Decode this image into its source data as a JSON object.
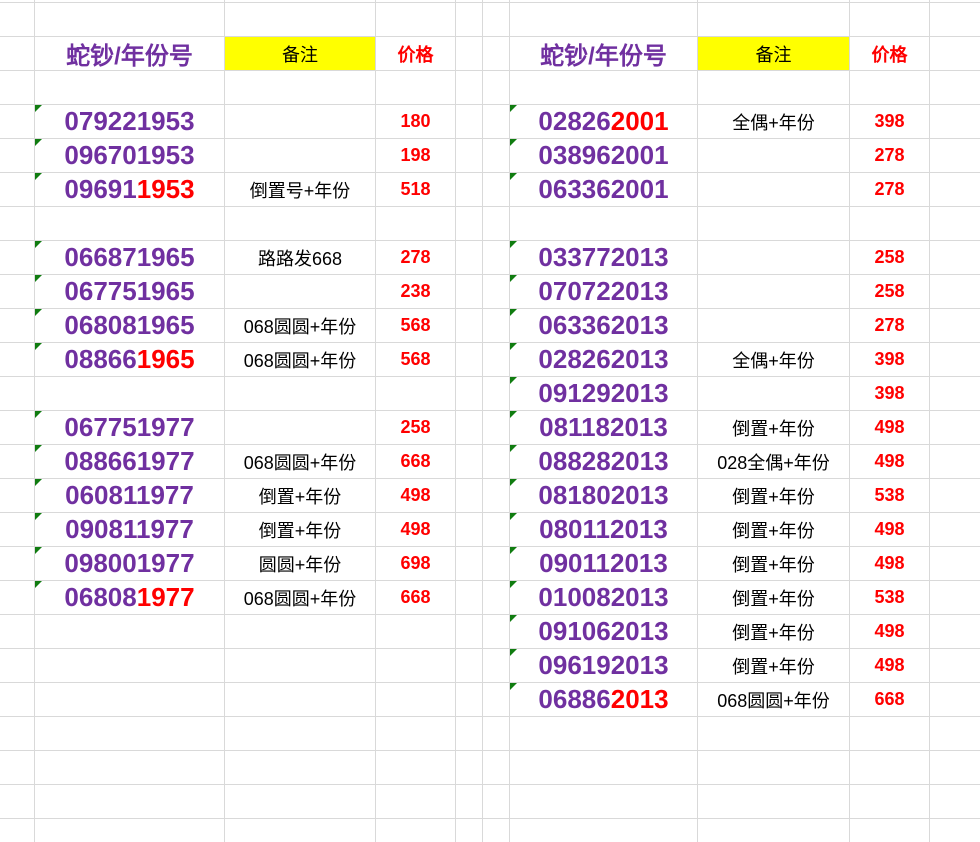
{
  "colors": {
    "number": "#7030a0",
    "highlight": "#ff0000",
    "price": "#ff0000",
    "note_header_fill": "#ffff00",
    "comment_marker": "#107c10"
  },
  "left_table": {
    "header": {
      "number": "蛇钞/年份号",
      "note": "备注",
      "price": "价格"
    },
    "groups": [
      [
        {
          "number": "079221953",
          "highlight": "",
          "note": "",
          "price": "180"
        },
        {
          "number": "096701953",
          "highlight": "",
          "note": "",
          "price": "198"
        },
        {
          "number": "09691",
          "highlight": "1953",
          "note": "倒置号+年份",
          "price": "518"
        }
      ],
      [
        {
          "number": "066871965",
          "highlight": "",
          "note": "路路发668",
          "price": "278"
        },
        {
          "number": "067751965",
          "highlight": "",
          "note": "",
          "price": "238"
        },
        {
          "number": "068081965",
          "highlight": "",
          "note": "068圆圆+年份",
          "price": "568"
        },
        {
          "number": "08866",
          "highlight": "1965",
          "note": "068圆圆+年份",
          "price": "568"
        }
      ],
      [
        {
          "number": "067751977",
          "highlight": "",
          "note": "",
          "price": "258"
        },
        {
          "number": "088661977",
          "highlight": "",
          "note": "068圆圆+年份",
          "price": "668"
        },
        {
          "number": "060811977",
          "highlight": "",
          "note": "倒置+年份",
          "price": "498"
        },
        {
          "number": "090811977",
          "highlight": "",
          "note": "倒置+年份",
          "price": "498"
        },
        {
          "number": "098001977",
          "highlight": "",
          "note": "圆圆+年份",
          "price": "698"
        },
        {
          "number": "06808",
          "highlight": "1977",
          "note": "068圆圆+年份",
          "price": "668"
        }
      ]
    ]
  },
  "right_table": {
    "header": {
      "number": "蛇钞/年份号",
      "note": "备注",
      "price": "价格"
    },
    "groups": [
      [
        {
          "number": "02826",
          "highlight": "2001",
          "note": "全偶+年份",
          "price": "398"
        },
        {
          "number": "038962001",
          "highlight": "",
          "note": "",
          "price": "278"
        },
        {
          "number": "063362001",
          "highlight": "",
          "note": "",
          "price": "278"
        }
      ],
      [
        {
          "number": "033772013",
          "highlight": "",
          "note": "",
          "price": "258"
        },
        {
          "number": "070722013",
          "highlight": "",
          "note": "",
          "price": "258"
        },
        {
          "number": "063362013",
          "highlight": "",
          "note": "",
          "price": "278"
        },
        {
          "number": "028262013",
          "highlight": "",
          "note": "全偶+年份",
          "price": "398"
        },
        {
          "number": "091292013",
          "highlight": "",
          "note": "",
          "price": "398"
        },
        {
          "number": "081182013",
          "highlight": "",
          "note": "倒置+年份",
          "price": "498"
        },
        {
          "number": "088282013",
          "highlight": "",
          "note": "028全偶+年份",
          "price": "498"
        },
        {
          "number": "081802013",
          "highlight": "",
          "note": "倒置+年份",
          "price": "538"
        },
        {
          "number": "080112013",
          "highlight": "",
          "note": "倒置+年份",
          "price": "498"
        },
        {
          "number": "090112013",
          "highlight": "",
          "note": "倒置+年份",
          "price": "498"
        },
        {
          "number": "010082013",
          "highlight": "",
          "note": "倒置+年份",
          "price": "538"
        },
        {
          "number": "091062013",
          "highlight": "",
          "note": "倒置+年份",
          "price": "498"
        },
        {
          "number": "096192013",
          "highlight": "",
          "note": "倒置+年份",
          "price": "498"
        },
        {
          "number": "06886",
          "highlight": "2013",
          "note": "068圆圆+年份",
          "price": "668"
        }
      ]
    ]
  }
}
